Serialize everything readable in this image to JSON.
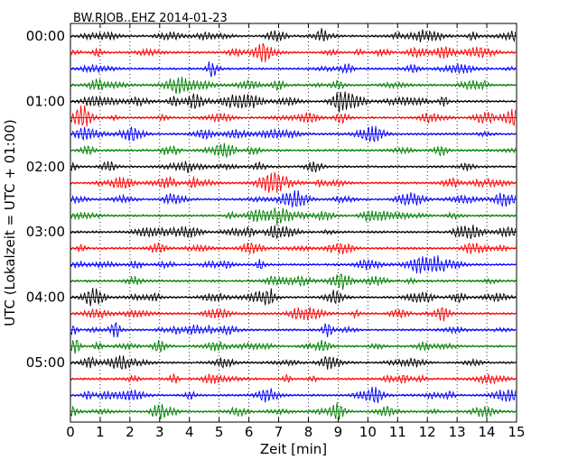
{
  "chart_data": {
    "type": "line",
    "title": "BW.RJOB..EHZ 2014-01-23",
    "xlabel": "Zeit  [min]",
    "ylabel": "UTC (Lokalzeit = UTC + 01:00)",
    "xlim": [
      0,
      15
    ],
    "x_ticks": [
      "0",
      "1",
      "2",
      "3",
      "4",
      "5",
      "6",
      "7",
      "8",
      "9",
      "10",
      "11",
      "12",
      "13",
      "14",
      "15"
    ],
    "y_ticks": [
      "00:00",
      "01:00",
      "02:00",
      "03:00",
      "04:00",
      "05:00"
    ],
    "trace_count": 24,
    "trace_interval_minutes": 15,
    "trace_colors": [
      "#000000",
      "#ff0000",
      "#0000ff",
      "#008000"
    ],
    "grid_x": "dotted",
    "grid_y": "solid"
  }
}
